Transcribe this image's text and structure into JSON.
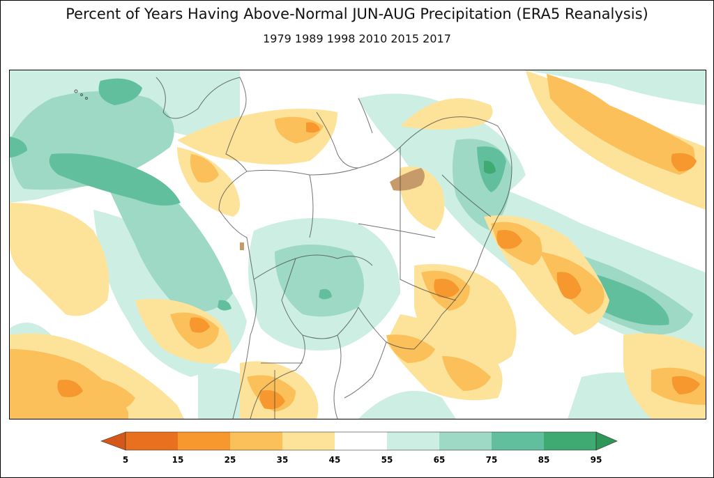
{
  "title": "Percent of Years Having Above-Normal JUN-AUG Precipitation (ERA5 Reanalysis)",
  "subtitle": "1979 1989 1998 2010 2015 2017",
  "legend": {
    "ticks": [
      "5",
      "15",
      "25",
      "35",
      "45",
      "55",
      "65",
      "75",
      "85",
      "95"
    ],
    "colors": {
      "0-5": "#d4581a",
      "5-15": "#e8701e",
      "15-25": "#f6982e",
      "25-35": "#fbc05a",
      "35-45": "#fde39a",
      "45-55": "#ffffff",
      "55-65": "#cdeee3",
      "65-75": "#9dd9c4",
      "75-85": "#62bf9d",
      "85-95": "#3faa72",
      "95-100": "#2e9656"
    }
  }
}
